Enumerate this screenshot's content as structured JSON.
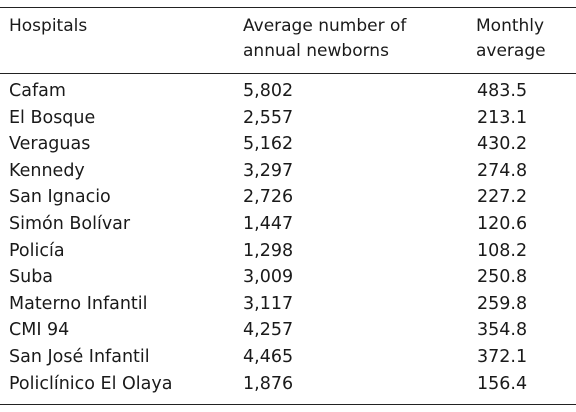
{
  "table": {
    "headers": {
      "hospital": "Hospitals",
      "newborns_line1": "Average number of",
      "newborns_line2": "annual newborns",
      "monthly_line1": "Monthly",
      "monthly_line2": "average"
    },
    "rows": [
      {
        "hospital": "Cafam",
        "newborns": "5,802",
        "monthly": "483.5"
      },
      {
        "hospital": "El Bosque",
        "newborns": "2,557",
        "monthly": "213.1"
      },
      {
        "hospital": "Veraguas",
        "newborns": "5,162",
        "monthly": "430.2"
      },
      {
        "hospital": "Kennedy",
        "newborns": "3,297",
        "monthly": "274.8"
      },
      {
        "hospital": "San Ignacio",
        "newborns": "2,726",
        "monthly": "227.2"
      },
      {
        "hospital": "Simón Bolívar",
        "newborns": "1,447",
        "monthly": "120.6"
      },
      {
        "hospital": "Policía",
        "newborns": "1,298",
        "monthly": "108.2"
      },
      {
        "hospital": "Suba",
        "newborns": "3,009",
        "monthly": "250.8"
      },
      {
        "hospital": "Materno Infantil",
        "newborns": "3,117",
        "monthly": "259.8"
      },
      {
        "hospital": "CMI 94",
        "newborns": "4,257",
        "monthly": "354.8"
      },
      {
        "hospital": "San José Infantil",
        "newborns": "4,465",
        "monthly": "372.1"
      },
      {
        "hospital": "Policlínico El Olaya",
        "newborns": "1,876",
        "monthly": "156.4"
      }
    ]
  }
}
